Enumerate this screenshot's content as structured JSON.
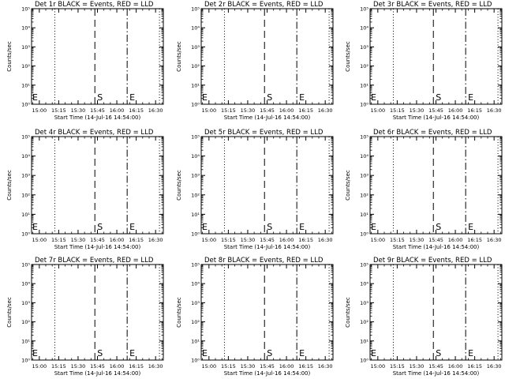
{
  "colors": {
    "background": "#ffffff",
    "foreground": "#000000",
    "lld_series": "#ff0000"
  },
  "common": {
    "x_tick_labels": [
      "15:00",
      "15:15",
      "15:30",
      "15:45",
      "16:00",
      "16:15",
      "16:30"
    ],
    "y_tick_labels": [
      "10⁰",
      "10¹",
      "10²",
      "10³",
      "10⁴",
      "10⁵"
    ],
    "xlabel": "Start Time (14-Jul-16 14:54:00)",
    "ylabel": "Counts/sec"
  },
  "chart_data": [
    {
      "type": "line",
      "title": "Det 1r BLACK = Events, RED = LLD",
      "xlabel": "Start Time (14-Jul-16 14:54:00)",
      "ylabel": "Counts/sec",
      "y_scale": "log",
      "ylim": [
        1,
        100000
      ],
      "x_ticks": [
        "15:00",
        "15:15",
        "15:30",
        "15:45",
        "16:00",
        "16:15",
        "16:30"
      ],
      "vertical_markers": [
        {
          "type": "dotted",
          "x": "15:12"
        },
        {
          "type": "dashed",
          "x": "15:43",
          "label": "S"
        },
        {
          "type": "dash-dot",
          "x": "16:08",
          "label": "E"
        },
        {
          "type": "dotted",
          "x": "16:33"
        }
      ],
      "left_label": "E",
      "series": []
    },
    {
      "type": "line",
      "title": "Det 2r BLACK = Events, RED = LLD",
      "xlabel": "Start Time (14-Jul-16 14:54:00)",
      "ylabel": "Counts/sec",
      "y_scale": "log",
      "ylim": [
        1,
        100000
      ],
      "x_ticks": [
        "15:00",
        "15:15",
        "15:30",
        "15:45",
        "16:00",
        "16:15",
        "16:30"
      ],
      "vertical_markers": [
        {
          "type": "dotted",
          "x": "15:12"
        },
        {
          "type": "dashed",
          "x": "15:43",
          "label": "S"
        },
        {
          "type": "dash-dot",
          "x": "16:08",
          "label": "E"
        },
        {
          "type": "dotted",
          "x": "16:33"
        }
      ],
      "left_label": "E",
      "series": []
    },
    {
      "type": "line",
      "title": "Det 3r BLACK = Events, RED = LLD",
      "xlabel": "Start Time (14-Jul-16 14:54:00)",
      "ylabel": "Counts/sec",
      "y_scale": "log",
      "ylim": [
        1,
        100000
      ],
      "x_ticks": [
        "15:00",
        "15:15",
        "15:30",
        "15:45",
        "16:00",
        "16:15",
        "16:30"
      ],
      "vertical_markers": [
        {
          "type": "dotted",
          "x": "15:12"
        },
        {
          "type": "dashed",
          "x": "15:43",
          "label": "S"
        },
        {
          "type": "dash-dot",
          "x": "16:08",
          "label": "E"
        },
        {
          "type": "dotted",
          "x": "16:33"
        }
      ],
      "left_label": "E",
      "series": []
    },
    {
      "type": "line",
      "title": "Det 4r BLACK = Events, RED = LLD",
      "xlabel": "Start Time (14-Jul-16 14:54:00)",
      "ylabel": "Counts/sec",
      "y_scale": "log",
      "ylim": [
        1,
        100000
      ],
      "x_ticks": [
        "15:00",
        "15:15",
        "15:30",
        "15:45",
        "16:00",
        "16:15",
        "16:30"
      ],
      "vertical_markers": [
        {
          "type": "dotted",
          "x": "15:12"
        },
        {
          "type": "dashed",
          "x": "15:43",
          "label": "S"
        },
        {
          "type": "dash-dot",
          "x": "16:08",
          "label": "E"
        },
        {
          "type": "dotted",
          "x": "16:33"
        }
      ],
      "left_label": "E",
      "series": []
    },
    {
      "type": "line",
      "title": "Det 5r BLACK = Events, RED = LLD",
      "xlabel": "Start Time (14-Jul-16 14:54:00)",
      "ylabel": "Counts/sec",
      "y_scale": "log",
      "ylim": [
        1,
        100000
      ],
      "x_ticks": [
        "15:00",
        "15:15",
        "15:30",
        "15:45",
        "16:00",
        "16:15",
        "16:30"
      ],
      "vertical_markers": [
        {
          "type": "dotted",
          "x": "15:12"
        },
        {
          "type": "dashed",
          "x": "15:43",
          "label": "S"
        },
        {
          "type": "dash-dot",
          "x": "16:08",
          "label": "E"
        },
        {
          "type": "dotted",
          "x": "16:33"
        }
      ],
      "left_label": "E",
      "series": []
    },
    {
      "type": "line",
      "title": "Det 6r BLACK = Events, RED = LLD",
      "xlabel": "Start Time (14-Jul-16 14:54:00)",
      "ylabel": "Counts/sec",
      "y_scale": "log",
      "ylim": [
        1,
        100000
      ],
      "x_ticks": [
        "15:00",
        "15:15",
        "15:30",
        "15:45",
        "16:00",
        "16:15",
        "16:30"
      ],
      "vertical_markers": [
        {
          "type": "dotted",
          "x": "15:12"
        },
        {
          "type": "dashed",
          "x": "15:43",
          "label": "S"
        },
        {
          "type": "dash-dot",
          "x": "16:08",
          "label": "E"
        },
        {
          "type": "dotted",
          "x": "16:33"
        }
      ],
      "left_label": "E",
      "series": []
    },
    {
      "type": "line",
      "title": "Det 7r BLACK = Events, RED = LLD",
      "xlabel": "Start Time (14-Jul-16 14:54:00)",
      "ylabel": "Counts/sec",
      "y_scale": "log",
      "ylim": [
        1,
        100000
      ],
      "x_ticks": [
        "15:00",
        "15:15",
        "15:30",
        "15:45",
        "16:00",
        "16:15",
        "16:30"
      ],
      "vertical_markers": [
        {
          "type": "dotted",
          "x": "15:12"
        },
        {
          "type": "dashed",
          "x": "15:43",
          "label": "S"
        },
        {
          "type": "dash-dot",
          "x": "16:08",
          "label": "E"
        },
        {
          "type": "dotted",
          "x": "16:33"
        }
      ],
      "left_label": "E",
      "series": []
    },
    {
      "type": "line",
      "title": "Det 8r BLACK = Events, RED = LLD",
      "xlabel": "Start Time (14-Jul-16 14:54:00)",
      "ylabel": "Counts/sec",
      "y_scale": "log",
      "ylim": [
        1,
        100000
      ],
      "x_ticks": [
        "15:00",
        "15:15",
        "15:30",
        "15:45",
        "16:00",
        "16:15",
        "16:30"
      ],
      "vertical_markers": [
        {
          "type": "dotted",
          "x": "15:12"
        },
        {
          "type": "dashed",
          "x": "15:43",
          "label": "S"
        },
        {
          "type": "dash-dot",
          "x": "16:08",
          "label": "E"
        },
        {
          "type": "dotted",
          "x": "16:33"
        }
      ],
      "left_label": "E",
      "series": []
    },
    {
      "type": "line",
      "title": "Det 9r BLACK = Events, RED = LLD",
      "xlabel": "Start Time (14-Jul-16 14:54:00)",
      "ylabel": "Counts/sec",
      "y_scale": "log",
      "ylim": [
        1,
        100000
      ],
      "x_ticks": [
        "15:00",
        "15:15",
        "15:30",
        "15:45",
        "16:00",
        "16:15",
        "16:30"
      ],
      "vertical_markers": [
        {
          "type": "dotted",
          "x": "15:12"
        },
        {
          "type": "dashed",
          "x": "15:43",
          "label": "S"
        },
        {
          "type": "dash-dot",
          "x": "16:08",
          "label": "E"
        },
        {
          "type": "dotted",
          "x": "16:33"
        }
      ],
      "left_label": "E",
      "series": []
    }
  ]
}
